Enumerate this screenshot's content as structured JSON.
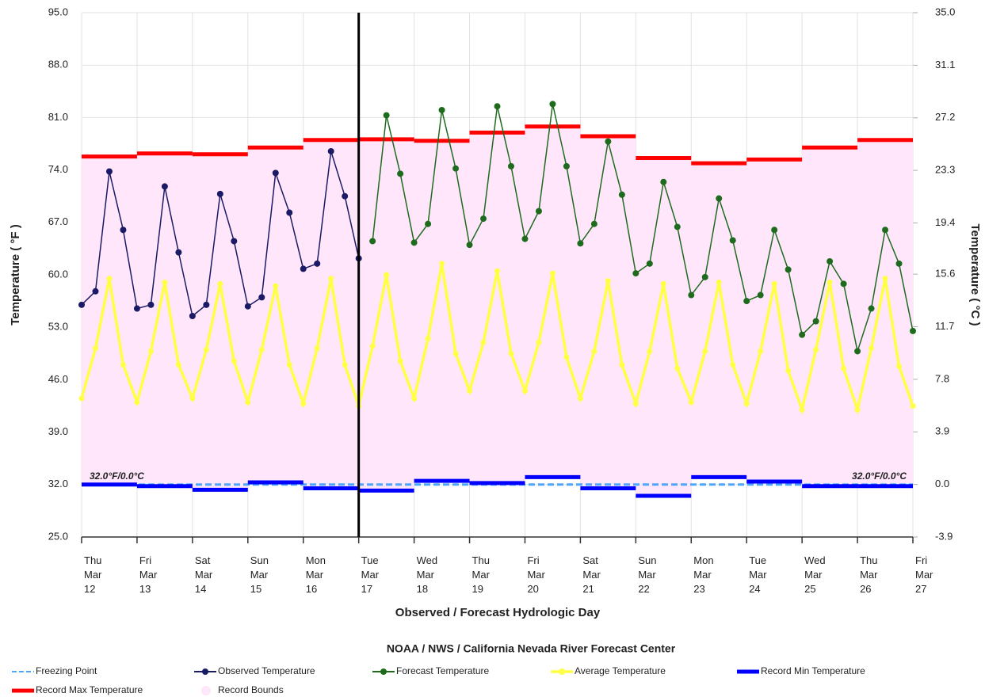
{
  "chart_data": {
    "type": "line",
    "title": "NOAA / NWS / California Nevada River Forecast Center",
    "x_label": "Observed / Forecast Hydrologic Day",
    "y_label": "Temperature ( °F )",
    "y2_label": "Temperature ( °C )",
    "xlim": [
      0,
      15
    ],
    "xticks": [
      {
        "value": 0,
        "label": "Thu Mar 12"
      },
      {
        "value": 1,
        "label": "Fri Mar 13"
      },
      {
        "value": 2,
        "label": "Sat Mar 14"
      },
      {
        "value": 3,
        "label": "Sun Mar 15"
      },
      {
        "value": 4,
        "label": "Mon Mar 16"
      },
      {
        "value": 5,
        "label": "Tue Mar 17"
      },
      {
        "value": 6,
        "label": "Wed Mar 18"
      },
      {
        "value": 7,
        "label": "Thu Mar 19"
      },
      {
        "value": 8,
        "label": "Fri Mar 20"
      },
      {
        "value": 9,
        "label": "Sat Mar 21"
      },
      {
        "value": 10,
        "label": "Sun Mar 22"
      },
      {
        "value": 11,
        "label": "Mon Mar 23"
      },
      {
        "value": 12,
        "label": "Tue Mar 24"
      },
      {
        "value": 13,
        "label": "Wed Mar 25"
      },
      {
        "value": 14,
        "label": "Thu Mar 26"
      },
      {
        "value": 15,
        "label": "Fri Mar 27"
      }
    ],
    "ylim": [
      25,
      95
    ],
    "yticks": [
      {
        "value": 25,
        "label": "25.0"
      },
      {
        "value": 32,
        "label": "32.0"
      },
      {
        "value": 39,
        "label": "39.0"
      },
      {
        "value": 46,
        "label": "46.0"
      },
      {
        "value": 53,
        "label": "53.0"
      },
      {
        "value": 60,
        "label": "60.0"
      },
      {
        "value": 67,
        "label": "67.0"
      },
      {
        "value": 74,
        "label": "74.0"
      },
      {
        "value": 81,
        "label": "81.0"
      },
      {
        "value": 88,
        "label": "88.0"
      },
      {
        "value": 95,
        "label": "95.0"
      }
    ],
    "y2lim": [
      -3.9,
      35.0
    ],
    "y2ticks": [
      {
        "value": -3.9,
        "label": "-3.9"
      },
      {
        "value": 0,
        "label": "0.0"
      },
      {
        "value": 3.9,
        "label": "3.9"
      },
      {
        "value": 7.8,
        "label": "7.8"
      },
      {
        "value": 11.7,
        "label": "11.7"
      },
      {
        "value": 15.6,
        "label": "15.6"
      },
      {
        "value": 19.4,
        "label": "19.4"
      },
      {
        "value": 23.3,
        "label": "23.3"
      },
      {
        "value": 27.2,
        "label": "27.2"
      },
      {
        "value": 31.1,
        "label": "31.1"
      },
      {
        "value": 35.0,
        "label": "35.0"
      }
    ],
    "grid": true,
    "vline_x": 5,
    "annotations": [
      "32.0°F/0.0°C",
      "32.0°F/0.0°C"
    ],
    "series": [
      {
        "name": "Freezing Point",
        "color": "#4da6ff",
        "style": "dashed",
        "x": [
          0,
          15
        ],
        "values": [
          32,
          32
        ]
      },
      {
        "name": "Observed Temperature",
        "color": "#1a1a66",
        "style": "markers",
        "x": [
          0,
          0.25,
          0.5,
          0.75,
          1,
          1.25,
          1.5,
          1.75,
          2,
          2.25,
          2.5,
          2.75,
          3,
          3.25,
          3.5,
          3.75,
          4,
          4.25,
          4.5,
          4.75,
          5
        ],
        "values": [
          56,
          57.8,
          73.8,
          66,
          55.5,
          56,
          71.8,
          63,
          54.5,
          56,
          70.8,
          64.5,
          55.8,
          57,
          73.6,
          68.3,
          60.8,
          61.5,
          76.5,
          70.5,
          62.2
        ]
      },
      {
        "name": "Forecast Temperature",
        "color": "#1e6b1e",
        "style": "markers",
        "x": [
          5.25,
          5.5,
          5.75,
          6,
          6.25,
          6.5,
          6.75,
          7,
          7.25,
          7.5,
          7.75,
          8,
          8.25,
          8.5,
          8.75,
          9,
          9.25,
          9.5,
          9.75,
          10,
          10.25,
          10.5,
          10.75,
          11,
          11.25,
          11.5,
          11.75,
          12,
          12.25,
          12.5,
          12.75,
          13,
          13.25,
          13.5,
          13.75,
          14,
          14.25,
          14.5,
          14.75,
          15
        ],
        "values": [
          64.5,
          81.3,
          73.5,
          64.3,
          66.8,
          82,
          74.2,
          64,
          67.5,
          82.5,
          74.5,
          64.8,
          68.5,
          82.8,
          74.5,
          64.2,
          66.8,
          77.8,
          70.7,
          60.2,
          61.5,
          72.4,
          66.4,
          57.3,
          59.7,
          70.2,
          64.6,
          56.5,
          57.3,
          66,
          60.7,
          52,
          53.8,
          61.8,
          58.8,
          49.8,
          55.5,
          66,
          61.5,
          52.5
        ]
      },
      {
        "name": "Average Temperature",
        "color": "#ffff44",
        "style": "thick",
        "x": [
          0,
          0.25,
          0.5,
          0.75,
          1,
          1.25,
          1.5,
          1.75,
          2,
          2.25,
          2.5,
          2.75,
          3,
          3.25,
          3.5,
          3.75,
          4,
          4.25,
          4.5,
          4.75,
          5,
          5.25,
          5.5,
          5.75,
          6,
          6.25,
          6.5,
          6.75,
          7,
          7.25,
          7.5,
          7.75,
          8,
          8.25,
          8.5,
          8.75,
          9,
          9.25,
          9.5,
          9.75,
          10,
          10.25,
          10.5,
          10.75,
          11,
          11.25,
          11.5,
          11.75,
          12,
          12.25,
          12.5,
          12.75,
          13,
          13.25,
          13.5,
          13.75,
          14,
          14.25,
          14.5,
          14.75,
          15
        ],
        "values": [
          43.5,
          50.2,
          59.5,
          48,
          43,
          49.8,
          59,
          48,
          43.5,
          50,
          58.8,
          48.5,
          43,
          50,
          58.5,
          48,
          42.8,
          50.2,
          59.5,
          48,
          42.5,
          50.5,
          60,
          48.5,
          43.5,
          51.5,
          61.5,
          49.5,
          44.5,
          51,
          60.5,
          49.5,
          44.5,
          51,
          60.2,
          49,
          43.5,
          49.8,
          59.2,
          48,
          42.8,
          49.8,
          58.8,
          47.5,
          43,
          49.8,
          59,
          48,
          42.8,
          49.8,
          58.8,
          47.2,
          42,
          50,
          59,
          47.5,
          42,
          50.2,
          59.5,
          47.8,
          42.5
        ]
      },
      {
        "name": "Record Min Temperature",
        "color": "#0000ff",
        "style": "step",
        "x": [
          0,
          1,
          2,
          3,
          4,
          5,
          6,
          7,
          8,
          9,
          10,
          11,
          12,
          13,
          14
        ],
        "values": [
          32,
          31.8,
          31.3,
          32.3,
          31.5,
          31.2,
          32.5,
          32.2,
          33,
          31.5,
          30.5,
          33,
          32.4,
          31.8,
          31.8
        ]
      },
      {
        "name": "Record Max Temperature",
        "color": "#ff0000",
        "style": "step",
        "x": [
          0,
          1,
          2,
          3,
          4,
          5,
          6,
          7,
          8,
          9,
          10,
          11,
          12,
          13,
          14
        ],
        "values": [
          75.8,
          76.2,
          76.1,
          77,
          78,
          78.1,
          77.9,
          79,
          79.8,
          78.5,
          75.6,
          74.9,
          75.4,
          77,
          78
        ]
      },
      {
        "name": "Record Bounds",
        "color": "#ffe6fa",
        "style": "band"
      }
    ]
  }
}
